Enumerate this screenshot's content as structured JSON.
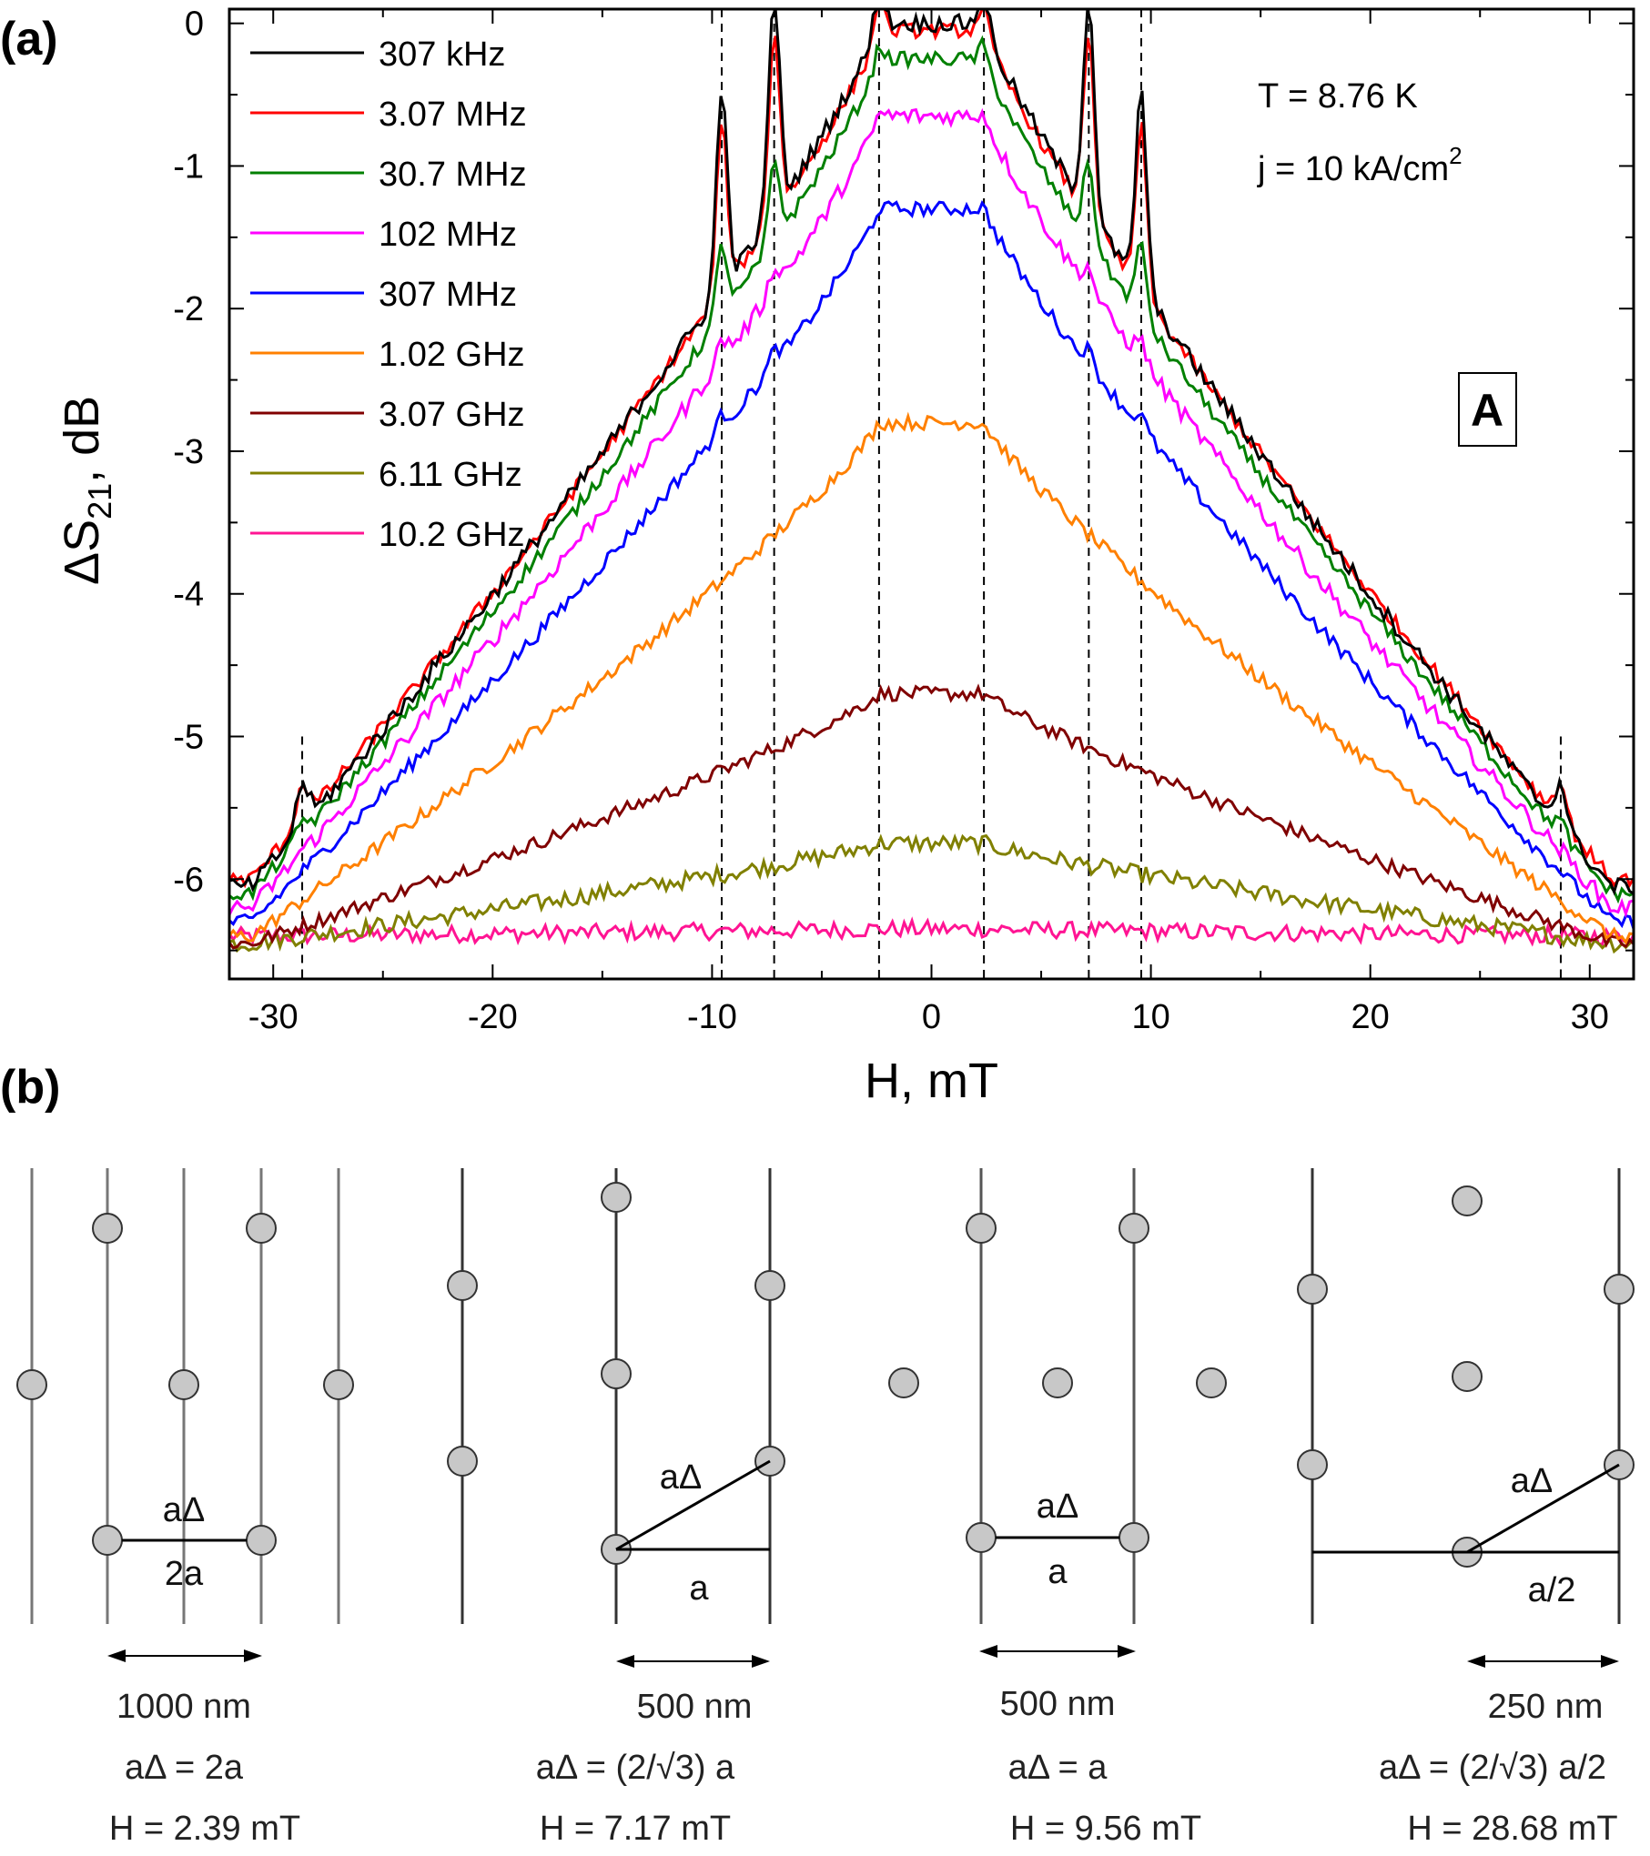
{
  "panel_a_label": "(a)",
  "panel_b_label": "(b)",
  "chart_data": {
    "type": "line",
    "title": "",
    "xlabel": "H, mT",
    "ylabel_main": "ΔS",
    "ylabel_sub": "21",
    "ylabel_tail": ", dB",
    "xlim": [
      -32,
      32
    ],
    "ylim": [
      -6.7,
      0.1
    ],
    "xticks": [
      -30,
      -20,
      -10,
      0,
      10,
      20,
      30
    ],
    "xtick_labels": [
      "-30",
      "-20",
      "-10",
      "0",
      "10",
      "20",
      "30"
    ],
    "yticks": [
      0,
      -1,
      -2,
      -3,
      -4,
      -5,
      -6
    ],
    "ytick_labels": [
      "0",
      "-1",
      "-2",
      "-3",
      "-4",
      "-5",
      "-6"
    ],
    "grid": false,
    "legend_position": "top-left",
    "annotation_temp": "T = 8.76 K",
    "annotation_current_base": "j = 10 kA/cm",
    "annotation_current_exp": "2",
    "boxed_label": "A",
    "dashed_markers_mT": [
      -28.68,
      -9.56,
      -7.17,
      -2.39,
      2.39,
      7.17,
      9.56,
      28.68
    ],
    "series": [
      {
        "name": "307 kHz",
        "color": "#000000",
        "center": 0.0,
        "side": -6.05,
        "peak_h": 1.55,
        "peak_s": 1.2,
        "noise": 0.06
      },
      {
        "name": "3.07 MHz",
        "color": "#ff0000",
        "center": -0.05,
        "side": -6.0,
        "peak_h": 1.3,
        "peak_s": 1.0,
        "noise": 0.05
      },
      {
        "name": "30.7 MHz",
        "color": "#008000",
        "center": -0.25,
        "side": -6.1,
        "peak_h": 0.55,
        "peak_s": 0.4,
        "noise": 0.05
      },
      {
        "name": "102 MHz",
        "color": "#ff00ff",
        "center": -0.65,
        "side": -6.2,
        "peak_h": 0.15,
        "peak_s": 0.1,
        "noise": 0.06
      },
      {
        "name": "307 MHz",
        "color": "#0000ff",
        "center": -1.3,
        "side": -6.3,
        "peak_h": 0.1,
        "peak_s": 0.05,
        "noise": 0.05
      },
      {
        "name": "1.02 GHz",
        "color": "#ff8000",
        "center": -2.8,
        "side": -6.4,
        "peak_h": 0.0,
        "peak_s": 0.0,
        "noise": 0.05
      },
      {
        "name": "3.07 GHz",
        "color": "#800000",
        "center": -4.7,
        "side": -6.45,
        "peak_h": 0.0,
        "peak_s": 0.0,
        "noise": 0.05
      },
      {
        "name": "6.11 GHz",
        "color": "#808000",
        "center": -5.75,
        "side": -6.45,
        "peak_h": 0.0,
        "peak_s": 0.0,
        "noise": 0.06
      },
      {
        "name": "10.2 GHz",
        "color": "#ff1493",
        "center": -6.35,
        "side": -6.4,
        "peak_h": 0.0,
        "peak_s": 0.0,
        "noise": 0.06
      }
    ]
  },
  "diagrams": [
    {
      "title_line": "aΔ",
      "base_label": "2a",
      "distance": "1000 nm",
      "relation": "aΔ = 2a",
      "field": "H = 2.39 mT"
    },
    {
      "title_line": "aΔ",
      "base_label": "a",
      "distance": "500 nm",
      "relation": "aΔ = (2/√3) a",
      "field": "H = 7.17 mT"
    },
    {
      "title_line": "aΔ",
      "base_label": "a",
      "distance": "500 nm",
      "relation": "aΔ = a",
      "field": "H = 9.56 mT"
    },
    {
      "title_line": "aΔ",
      "base_label": "a/2",
      "distance": "250 nm",
      "relation": "aΔ = (2/√3) a/2",
      "field": "H = 28.68 mT"
    }
  ]
}
